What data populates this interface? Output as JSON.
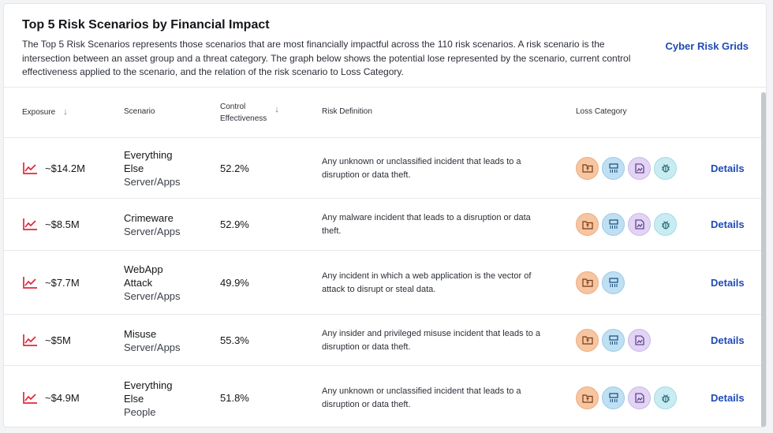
{
  "header": {
    "title": "Top 5 Risk Scenarios by Financial Impact",
    "description": "The Top 5 Risk Scenarios represents those scenarios that are most financially impactful across the 110 risk scenarios. A risk scenario is the intersection between an asset group and a threat category. The graph below shows the potential lose represented by the scenario, current control effectiveness applied to the scenario, and the relation of the risk scenario to Loss Category.",
    "grids_link": "Cyber Risk Grids"
  },
  "columns": {
    "exposure": "Exposure",
    "scenario": "Scenario",
    "control_line1": "Control",
    "control_line2": "Effectiveness",
    "definition": "Risk Definition",
    "loss": "Loss Category"
  },
  "colors": {
    "accent_link": "#1f4bb5",
    "trend_icon": "#e0283a",
    "badge_orange": "#f6c6a3",
    "badge_blue": "#bfe0f3",
    "badge_purple": "#e2d4f4",
    "badge_cyan": "#c9ecf2"
  },
  "rows": [
    {
      "exposure": "~$14.2M",
      "scenario_line1": "Everything",
      "scenario_line2": "Else",
      "asset": "Server/Apps",
      "control": "52.2%",
      "definition": "Any unknown or unclassified incident that leads to a disruption or data theft.",
      "badges": [
        "folder-icon",
        "server-icon",
        "chart-file-icon",
        "bug-icon"
      ],
      "details": "Details"
    },
    {
      "exposure": "~$8.5M",
      "scenario_line1": "Crimeware",
      "scenario_line2": "",
      "asset": "Server/Apps",
      "control": "52.9%",
      "definition": "Any malware incident that leads to a disruption or data theft.",
      "badges": [
        "folder-icon",
        "server-icon",
        "chart-file-icon",
        "bug-icon"
      ],
      "details": "Details"
    },
    {
      "exposure": "~$7.7M",
      "scenario_line1": "WebApp",
      "scenario_line2": "Attack",
      "asset": "Server/Apps",
      "control": "49.9%",
      "definition": "Any incident in which a web application is the vector of attack to disrupt or steal data.",
      "badges": [
        "folder-icon",
        "server-icon"
      ],
      "details": "Details"
    },
    {
      "exposure": "~$5M",
      "scenario_line1": "Misuse",
      "scenario_line2": "",
      "asset": "Server/Apps",
      "control": "55.3%",
      "definition": "Any insider and privileged misuse incident that leads to a disruption or data theft.",
      "badges": [
        "folder-icon",
        "server-icon",
        "chart-file-icon"
      ],
      "details": "Details"
    },
    {
      "exposure": "~$4.9M",
      "scenario_line1": "Everything",
      "scenario_line2": "Else",
      "asset": "People",
      "control": "51.8%",
      "definition": "Any unknown or unclassified incident that leads to a disruption or data theft.",
      "badges": [
        "folder-icon",
        "server-icon",
        "chart-file-icon",
        "bug-icon"
      ],
      "details": "Details"
    }
  ]
}
